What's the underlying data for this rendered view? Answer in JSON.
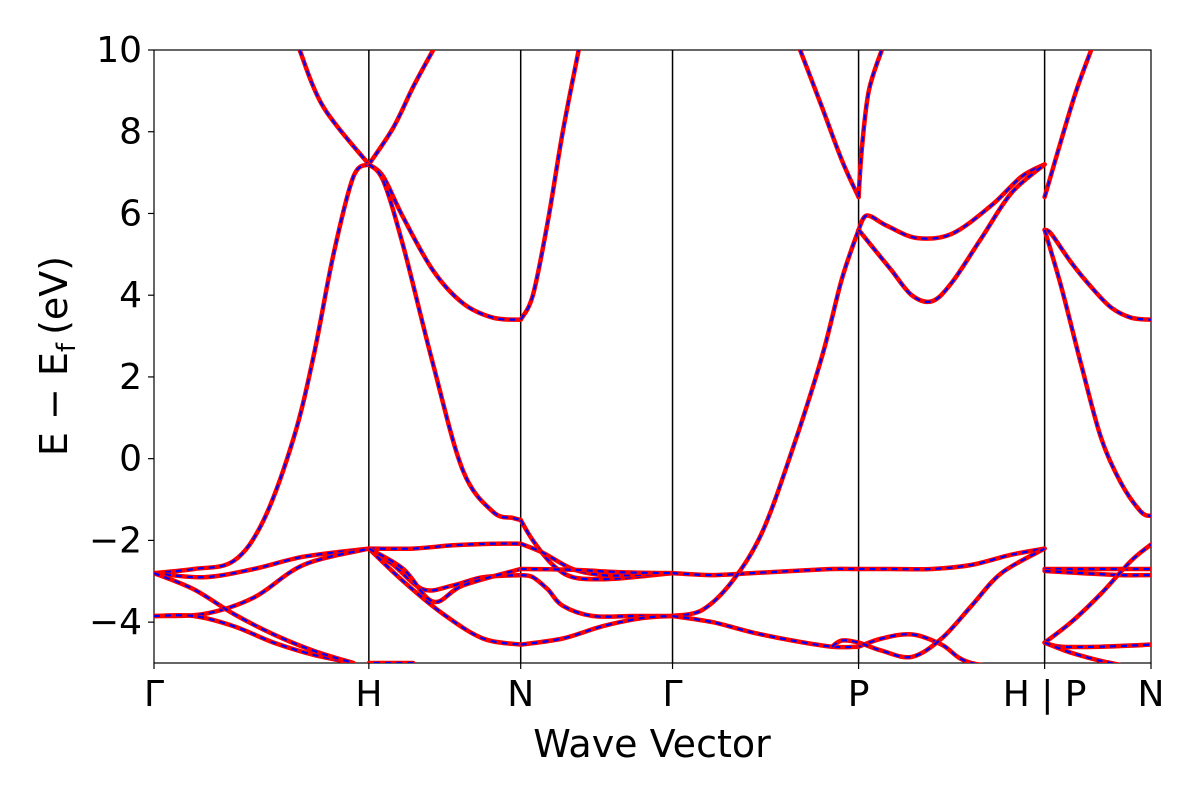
{
  "chart_data": {
    "type": "line",
    "title": "",
    "xlabel": "Wave Vector",
    "ylabel": "E − E",
    "ylabel_subscript": "f",
    "ylabel_unit": "(eV)",
    "ylim": [
      -5,
      10
    ],
    "yticks": [
      -4,
      -2,
      0,
      2,
      4,
      6,
      8,
      10
    ],
    "ytick_labels": [
      "−4",
      "−2",
      "0",
      "2",
      "4",
      "6",
      "8",
      "10"
    ],
    "xlim": [
      0,
      1
    ],
    "kpoints": [
      {
        "label": "Γ",
        "x": 0.0
      },
      {
        "label": "H",
        "x": 0.2155
      },
      {
        "label": "N",
        "x": 0.3678
      },
      {
        "label": "Γ",
        "x": 0.5201
      },
      {
        "label": "P",
        "x": 0.7067
      },
      {
        "label": "H | P",
        "x": 0.8933
      },
      {
        "label": "N",
        "x": 1.0
      }
    ],
    "grid": false,
    "legend": "none",
    "colors": {
      "primary": "#ff0000",
      "overlay": "#0000ff",
      "axis": "#000000"
    },
    "series": [
      {
        "segment": "Γ-H",
        "x": [
          0.0,
          0.04,
          0.08,
          0.11,
          0.14,
          0.16,
          0.18,
          0.2,
          0.2155
        ],
        "y": [
          -2.8,
          -2.7,
          -2.5,
          -1.5,
          0.5,
          2.5,
          5.0,
          6.9,
          7.2
        ]
      },
      {
        "segment": "Γ-H",
        "x": [
          0.0,
          0.05,
          0.1,
          0.15,
          0.2155
        ],
        "y": [
          -2.8,
          -2.9,
          -2.7,
          -2.4,
          -2.2
        ]
      },
      {
        "segment": "Γ-H",
        "x": [
          0.0,
          0.05,
          0.1,
          0.15,
          0.2155
        ],
        "y": [
          -3.85,
          -3.8,
          -3.4,
          -2.6,
          -2.2
        ]
      },
      {
        "segment": "Γ-H",
        "x": [
          0.0,
          0.04,
          0.08,
          0.12,
          0.16,
          0.2
        ],
        "y": [
          -3.85,
          -3.85,
          -4.1,
          -4.5,
          -4.8,
          -5.0
        ]
      },
      {
        "segment": "Γ-H",
        "x": [
          0.0,
          0.04,
          0.08,
          0.12,
          0.16,
          0.2
        ],
        "y": [
          -2.8,
          -3.2,
          -3.8,
          -4.3,
          -4.7,
          -5.0
        ]
      },
      {
        "segment": "H-N",
        "x": [
          0.26,
          0.2155
        ],
        "y": [
          -5.0,
          -5.0
        ]
      },
      {
        "segment": "Γ-H",
        "x": [
          0.146,
          0.17,
          0.2155
        ],
        "y": [
          10.0,
          8.6,
          7.2
        ]
      },
      {
        "segment": "H-N",
        "x": [
          0.2155,
          0.24,
          0.26,
          0.28
        ],
        "y": [
          7.2,
          8.1,
          9.1,
          10.0
        ]
      },
      {
        "segment": "H-N",
        "x": [
          0.2155,
          0.23,
          0.25,
          0.28,
          0.31,
          0.34,
          0.3678
        ],
        "y": [
          7.2,
          6.9,
          5.9,
          4.6,
          3.8,
          3.45,
          3.4
        ]
      },
      {
        "segment": "N-Γ",
        "x": [
          0.3678,
          0.38,
          0.395,
          0.41,
          0.426
        ],
        "y": [
          3.4,
          4.0,
          5.8,
          8.0,
          10.0
        ]
      },
      {
        "segment": "H-N",
        "x": [
          0.2155,
          0.23,
          0.25,
          0.28,
          0.31,
          0.34,
          0.36,
          0.3678
        ],
        "y": [
          7.2,
          6.8,
          5.2,
          2.3,
          -0.3,
          -1.3,
          -1.45,
          -1.5
        ]
      },
      {
        "segment": "N-Γ",
        "x": [
          0.3678,
          0.38,
          0.4,
          0.42,
          0.45,
          0.48,
          0.52
        ],
        "y": [
          -1.5,
          -2.0,
          -2.6,
          -2.9,
          -2.95,
          -2.9,
          -2.8
        ]
      },
      {
        "segment": "H-N",
        "x": [
          0.2155,
          0.26,
          0.3,
          0.34,
          0.3678
        ],
        "y": [
          -2.2,
          -2.2,
          -2.12,
          -2.08,
          -2.08
        ]
      },
      {
        "segment": "N-Γ",
        "x": [
          0.3678,
          0.39,
          0.42,
          0.45,
          0.48,
          0.52
        ],
        "y": [
          -2.08,
          -2.3,
          -2.7,
          -2.85,
          -2.85,
          -2.8
        ]
      },
      {
        "segment": "H-N",
        "x": [
          0.2155,
          0.24,
          0.27,
          0.3,
          0.33,
          0.3678
        ],
        "y": [
          -2.2,
          -2.6,
          -3.2,
          -3.1,
          -2.9,
          -2.85
        ]
      },
      {
        "segment": "N-Γ",
        "x": [
          0.3678,
          0.38,
          0.395,
          0.41,
          0.44,
          0.48,
          0.52
        ],
        "y": [
          -2.85,
          -2.9,
          -3.2,
          -3.6,
          -3.85,
          -3.85,
          -3.85
        ]
      },
      {
        "segment": "H-N",
        "x": [
          0.2155,
          0.25,
          0.29,
          0.33,
          0.3678
        ],
        "y": [
          -2.2,
          -3.0,
          -3.8,
          -4.4,
          -4.55
        ]
      },
      {
        "segment": "N-Γ",
        "x": [
          0.3678,
          0.41,
          0.45,
          0.49,
          0.52
        ],
        "y": [
          -4.55,
          -4.4,
          -4.1,
          -3.9,
          -3.85
        ]
      },
      {
        "segment": "H-N",
        "x": [
          0.2155,
          0.25,
          0.28,
          0.31,
          0.3678
        ],
        "y": [
          -2.2,
          -2.7,
          -3.5,
          -3.1,
          -2.7
        ]
      },
      {
        "segment": "N-Γ",
        "x": [
          0.3678,
          0.42,
          0.47,
          0.52
        ],
        "y": [
          -2.7,
          -2.72,
          -2.78,
          -2.8
        ]
      },
      {
        "segment": "Γ-P",
        "x": [
          0.52,
          0.56,
          0.6,
          0.64,
          0.68,
          0.7067
        ],
        "y": [
          -2.8,
          -2.85,
          -2.8,
          -2.75,
          -2.7,
          -2.7
        ]
      },
      {
        "segment": "P-H",
        "x": [
          0.7067,
          0.74,
          0.78,
          0.82,
          0.86,
          0.8933
        ],
        "y": [
          -2.7,
          -2.7,
          -2.7,
          -2.6,
          -2.35,
          -2.2
        ]
      },
      {
        "segment": "Γ-P",
        "x": [
          0.52,
          0.55,
          0.58,
          0.61,
          0.64,
          0.67,
          0.69,
          0.7067
        ],
        "y": [
          -3.85,
          -3.7,
          -3.0,
          -1.8,
          0.2,
          2.5,
          4.4,
          5.6
        ]
      },
      {
        "segment": "Γ-P",
        "x": [
          0.52,
          0.56,
          0.6,
          0.64,
          0.68,
          0.7067
        ],
        "y": [
          -3.85,
          -4.0,
          -4.25,
          -4.45,
          -4.6,
          -4.6
        ]
      },
      {
        "segment": "P-H",
        "x": [
          0.7067,
          0.73,
          0.76,
          0.79,
          0.82,
          0.8933
        ],
        "y": [
          -4.6,
          -4.4,
          -4.3,
          -4.55,
          -5.0,
          -5.2
        ]
      },
      {
        "segment": "P-H",
        "x": [
          0.68,
          0.69,
          0.7067,
          0.73,
          0.76,
          0.79,
          0.82,
          0.85,
          0.8933
        ],
        "y": [
          -4.6,
          -4.45,
          -4.5,
          -4.7,
          -4.85,
          -4.4,
          -3.6,
          -2.8,
          -2.2
        ]
      },
      {
        "segment": "Γ-P",
        "x": [
          0.648,
          0.67,
          0.69,
          0.7067
        ],
        "y": [
          10.0,
          8.6,
          7.3,
          6.4
        ]
      },
      {
        "segment": "P-H",
        "x": [
          0.7067,
          0.71,
          0.717,
          0.73
        ],
        "y": [
          6.4,
          7.6,
          9.0,
          10.0
        ]
      },
      {
        "segment": "P-H",
        "x": [
          0.7067,
          0.715,
          0.735,
          0.765,
          0.8,
          0.84,
          0.87,
          0.8933
        ],
        "y": [
          5.6,
          5.95,
          5.7,
          5.4,
          5.5,
          6.2,
          6.9,
          7.2
        ]
      },
      {
        "segment": "P-H",
        "x": [
          0.7067,
          0.72,
          0.74,
          0.76,
          0.78,
          0.8,
          0.83,
          0.86,
          0.8933
        ],
        "y": [
          5.6,
          5.2,
          4.6,
          4.0,
          3.85,
          4.3,
          5.4,
          6.5,
          7.2
        ]
      },
      {
        "segment": "P-N",
        "x": [
          0.8933,
          0.91,
          0.925,
          0.94
        ],
        "y": [
          6.4,
          7.8,
          9.0,
          10.0
        ]
      },
      {
        "segment": "P-N",
        "x": [
          0.8933,
          0.9,
          0.92,
          0.94,
          0.96,
          0.98,
          1.0
        ],
        "y": [
          5.6,
          5.5,
          4.8,
          4.2,
          3.7,
          3.45,
          3.4
        ]
      },
      {
        "segment": "P-N",
        "x": [
          0.8933,
          0.91,
          0.93,
          0.95,
          0.97,
          0.99,
          1.0
        ],
        "y": [
          5.6,
          4.2,
          2.3,
          0.5,
          -0.6,
          -1.3,
          -1.4
        ]
      },
      {
        "segment": "P-N",
        "x": [
          0.8933,
          0.93,
          0.97,
          1.0
        ],
        "y": [
          -2.7,
          -2.7,
          -2.7,
          -2.7
        ]
      },
      {
        "segment": "P-N",
        "x": [
          0.8933,
          0.93,
          0.97,
          1.0
        ],
        "y": [
          -2.75,
          -2.8,
          -2.85,
          -2.85
        ]
      },
      {
        "segment": "P-N",
        "x": [
          0.8933,
          0.92,
          0.95,
          0.98,
          1.0
        ],
        "y": [
          -4.5,
          -4.0,
          -3.3,
          -2.5,
          -2.1
        ]
      },
      {
        "segment": "P-N",
        "x": [
          0.8933,
          0.91,
          0.95,
          1.0
        ],
        "y": [
          -4.5,
          -4.6,
          -4.6,
          -4.55
        ]
      },
      {
        "segment": "P-N",
        "x": [
          0.8933,
          0.92,
          0.95,
          0.98,
          1.0
        ],
        "y": [
          -4.5,
          -4.75,
          -4.95,
          -5.1,
          -5.2
        ]
      }
    ]
  }
}
